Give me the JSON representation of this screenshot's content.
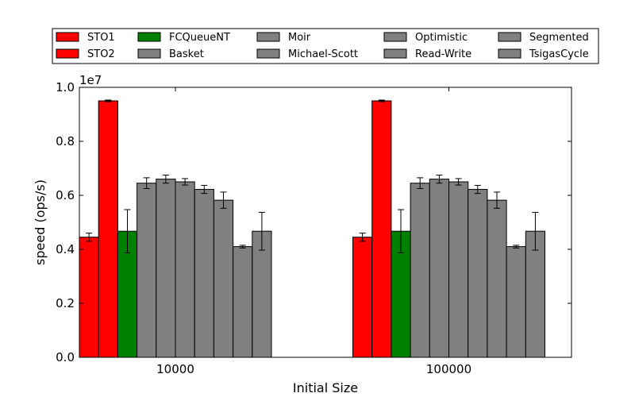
{
  "chart_data": {
    "type": "bar",
    "title": "",
    "xlabel": "Initial Size",
    "ylabel": "speed (ops/s)",
    "y_offset_label": "1e7",
    "y_scale": 10000000,
    "ylim": [
      0,
      1.0
    ],
    "yticks": [
      "0.0",
      "0.2",
      "0.4",
      "0.6",
      "0.8",
      "1.0"
    ],
    "categories": [
      "10000",
      "100000"
    ],
    "grid": false,
    "legend_position": "top",
    "series": [
      {
        "name": "STO1",
        "color": "#ff0000",
        "values": [
          0.445,
          0.445
        ],
        "errors": [
          0.015,
          0.015
        ]
      },
      {
        "name": "STO2",
        "color": "#ff0000",
        "values": [
          0.95,
          0.95
        ],
        "errors": [
          0.003,
          0.003
        ]
      },
      {
        "name": "FCQueueNT",
        "color": "#008000",
        "values": [
          0.467,
          0.467
        ],
        "errors": [
          0.08,
          0.08
        ]
      },
      {
        "name": "Basket",
        "color": "#808080",
        "values": [
          0.645,
          0.645
        ],
        "errors": [
          0.02,
          0.02
        ]
      },
      {
        "name": "Moir",
        "color": "#808080",
        "values": [
          0.66,
          0.66
        ],
        "errors": [
          0.015,
          0.015
        ]
      },
      {
        "name": "Michael-Scott",
        "color": "#808080",
        "values": [
          0.65,
          0.65
        ],
        "errors": [
          0.012,
          0.012
        ]
      },
      {
        "name": "Optimistic",
        "color": "#808080",
        "values": [
          0.622,
          0.622
        ],
        "errors": [
          0.015,
          0.015
        ]
      },
      {
        "name": "Read-Write",
        "color": "#808080",
        "values": [
          0.582,
          0.582
        ],
        "errors": [
          0.03,
          0.03
        ]
      },
      {
        "name": "Segmented",
        "color": "#808080",
        "values": [
          0.41,
          0.41
        ],
        "errors": [
          0.005,
          0.005
        ]
      },
      {
        "name": "TsigasCycle",
        "color": "#808080",
        "values": [
          0.467,
          0.467
        ],
        "errors": [
          0.07,
          0.07
        ]
      }
    ]
  }
}
